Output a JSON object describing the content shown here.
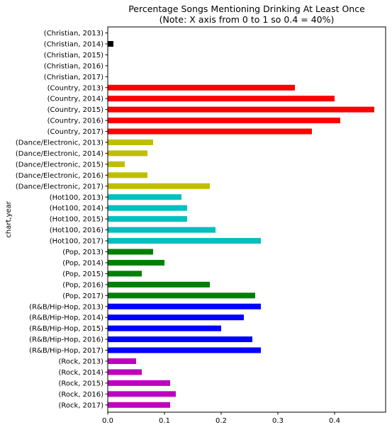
{
  "chart_data": {
    "type": "bar",
    "orientation": "horizontal",
    "title": "Percentage Songs Mentioning Drinking At Least Once",
    "subtitle": "(Note: X axis from 0 to 1 so 0.4 = 40%)",
    "ylabel": "chart,year",
    "xlabel": "",
    "xlim": [
      0,
      0.49
    ],
    "xticks": [
      "0.0",
      "0.1",
      "0.2",
      "0.3",
      "0.4"
    ],
    "grid": false,
    "categories": [
      "(Christian, 2013)",
      "(Christian, 2014)",
      "(Christian, 2015)",
      "(Christian, 2016)",
      "(Christian, 2017)",
      "(Country, 2013)",
      "(Country, 2014)",
      "(Country, 2015)",
      "(Country, 2016)",
      "(Country, 2017)",
      "(Dance/Electronic, 2013)",
      "(Dance/Electronic, 2014)",
      "(Dance/Electronic, 2015)",
      "(Dance/Electronic, 2016)",
      "(Dance/Electronic, 2017)",
      "(Hot100, 2013)",
      "(Hot100, 2014)",
      "(Hot100, 2015)",
      "(Hot100, 2016)",
      "(Hot100, 2017)",
      "(Pop, 2013)",
      "(Pop, 2014)",
      "(Pop, 2015)",
      "(Pop, 2016)",
      "(Pop, 2017)",
      "(R&B/Hip-Hop, 2013)",
      "(R&B/Hip-Hop, 2014)",
      "(R&B/Hip-Hop, 2015)",
      "(R&B/Hip-Hop, 2016)",
      "(R&B/Hip-Hop, 2017)",
      "(Rock, 2013)",
      "(Rock, 2014)",
      "(Rock, 2015)",
      "(Rock, 2016)",
      "(Rock, 2017)"
    ],
    "values": [
      0.0,
      0.01,
      0.0,
      0.0,
      0.0,
      0.33,
      0.4,
      0.47,
      0.41,
      0.36,
      0.08,
      0.07,
      0.03,
      0.07,
      0.18,
      0.13,
      0.14,
      0.14,
      0.19,
      0.27,
      0.08,
      0.1,
      0.06,
      0.18,
      0.26,
      0.27,
      0.24,
      0.2,
      0.255,
      0.27,
      0.05,
      0.06,
      0.11,
      0.12,
      0.11
    ],
    "colors": [
      "#000000",
      "#000000",
      "#000000",
      "#000000",
      "#000000",
      "#ff0000",
      "#ff0000",
      "#ff0000",
      "#ff0000",
      "#ff0000",
      "#bfbf00",
      "#bfbf00",
      "#bfbf00",
      "#bfbf00",
      "#bfbf00",
      "#00bfbf",
      "#00bfbf",
      "#00bfbf",
      "#00bfbf",
      "#00bfbf",
      "#008000",
      "#008000",
      "#008000",
      "#008000",
      "#008000",
      "#0000ff",
      "#0000ff",
      "#0000ff",
      "#0000ff",
      "#0000ff",
      "#bf00bf",
      "#bf00bf",
      "#bf00bf",
      "#bf00bf",
      "#bf00bf"
    ]
  }
}
